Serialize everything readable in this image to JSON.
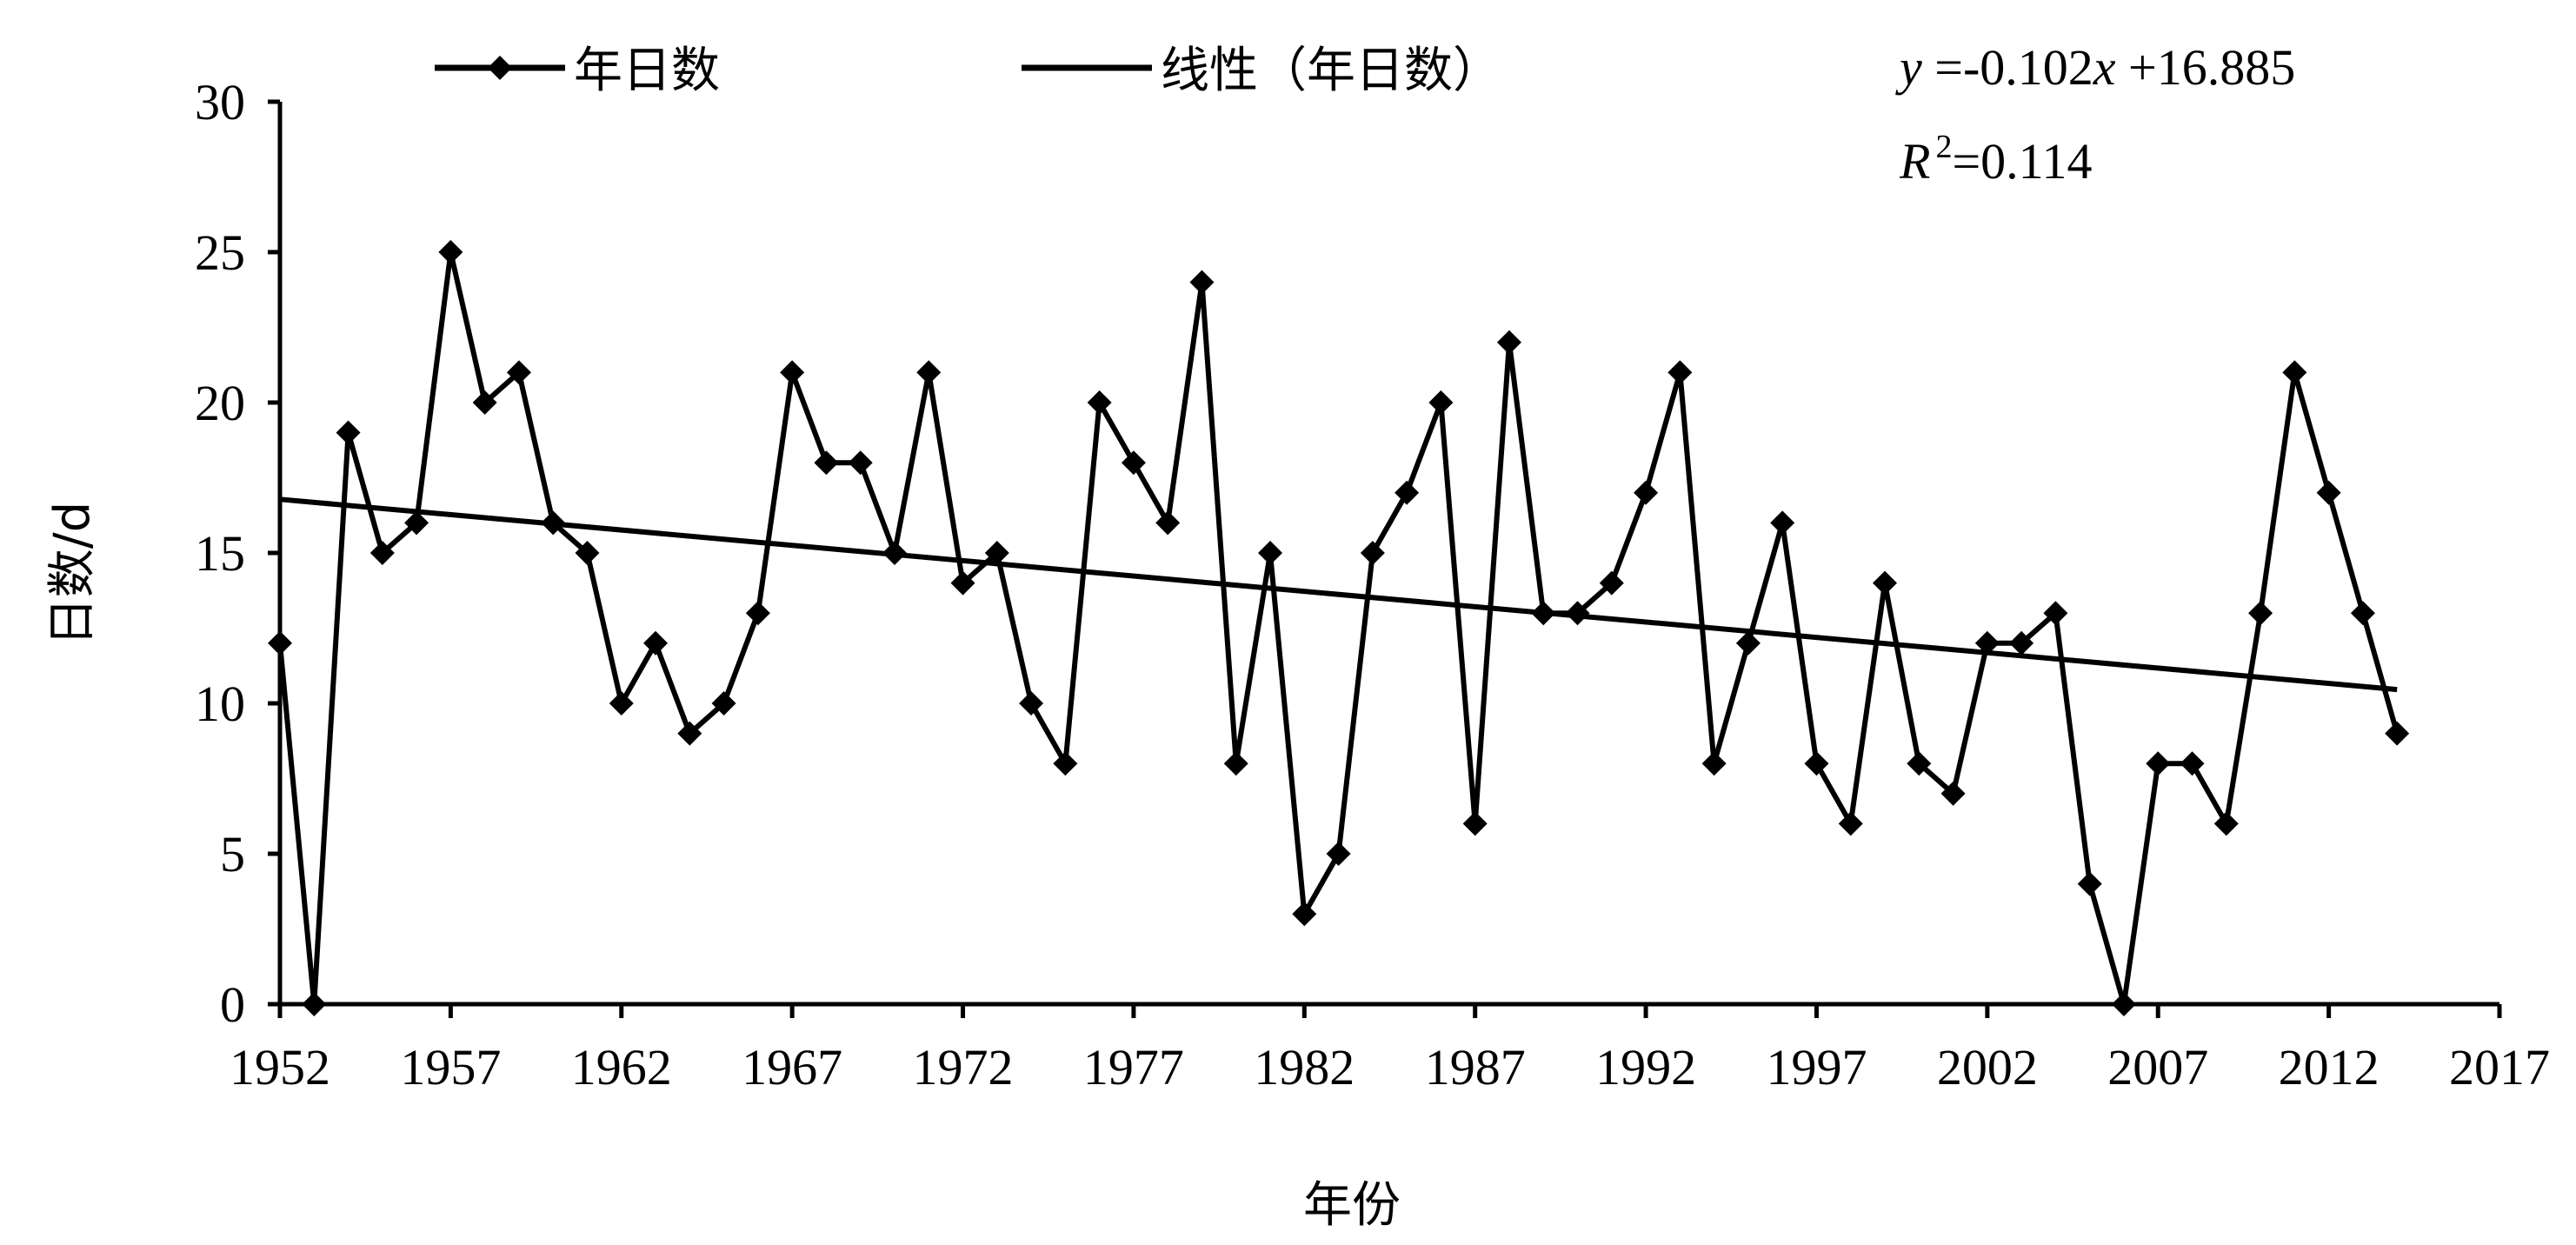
{
  "chart_data": {
    "type": "line",
    "xlabel": "年份",
    "ylabel": "日数/d",
    "xlim": [
      1952,
      2017
    ],
    "ylim": [
      0,
      30
    ],
    "x_ticks": [
      1952,
      1957,
      1962,
      1967,
      1972,
      1977,
      1982,
      1987,
      1992,
      1997,
      2002,
      2007,
      2012,
      2017
    ],
    "y_ticks": [
      0,
      5,
      10,
      15,
      20,
      25,
      30
    ],
    "grid": false,
    "legend_position": "top",
    "x": [
      1952,
      1953,
      1954,
      1955,
      1956,
      1957,
      1958,
      1959,
      1960,
      1961,
      1962,
      1963,
      1964,
      1965,
      1966,
      1967,
      1968,
      1969,
      1970,
      1971,
      1972,
      1973,
      1974,
      1975,
      1976,
      1977,
      1978,
      1979,
      1980,
      1981,
      1982,
      1983,
      1984,
      1985,
      1986,
      1987,
      1988,
      1989,
      1990,
      1991,
      1992,
      1993,
      1994,
      1995,
      1996,
      1997,
      1998,
      1999,
      2000,
      2001,
      2002,
      2003,
      2004,
      2005,
      2006,
      2007,
      2008,
      2009,
      2010,
      2011,
      2012,
      2013,
      2014
    ],
    "series": [
      {
        "name": "年日数",
        "marker": "diamond",
        "color": "#000000",
        "values": [
          12,
          0,
          19,
          15,
          16,
          25,
          20,
          21,
          16,
          15,
          10,
          12,
          9,
          10,
          13,
          21,
          18,
          18,
          15,
          21,
          14,
          15,
          10,
          8,
          20,
          18,
          16,
          24,
          8,
          15,
          3,
          5,
          15,
          17,
          20,
          6,
          22,
          13,
          13,
          14,
          17,
          21,
          8,
          12,
          16,
          8,
          6,
          14,
          8,
          7,
          12,
          12,
          13,
          4,
          0,
          8,
          8,
          6,
          13,
          21,
          17,
          13,
          9
        ]
      },
      {
        "name": "线性（年日数）",
        "color": "#000000",
        "trendline": {
          "slope": -0.102,
          "intercept": 16.885,
          "x_index_start": 1,
          "x_index_end": 63
        }
      }
    ],
    "annotations": {
      "equation_y": "y",
      "equation_rest": " =-0.102",
      "equation_x": "x",
      "equation_tail": " +16.885",
      "r2_letter": "R",
      "r2_sup": "2",
      "r2_value": "=0.114"
    }
  }
}
